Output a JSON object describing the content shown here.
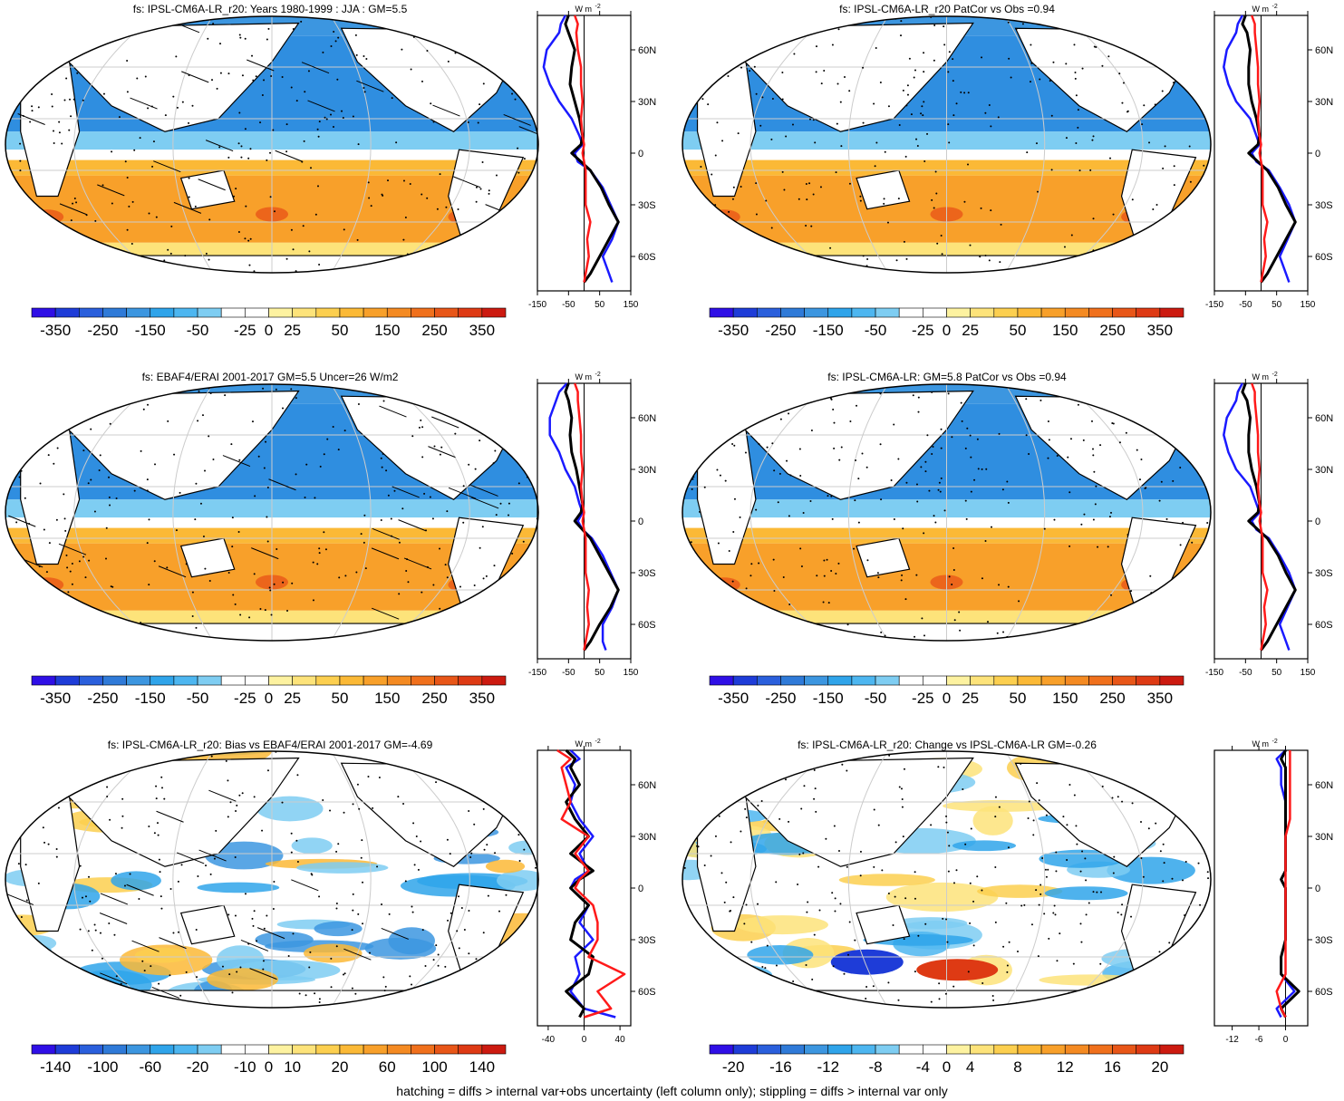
{
  "figure": {
    "footer": "hatching = diffs > internal var+obs uncertainty (left column only); stippling = diffs > internal var only",
    "unit_label": "W m",
    "unit_exp": "-2",
    "lat_ticks": [
      "60N",
      "30N",
      "0",
      "30S",
      "60S"
    ],
    "colors": {
      "land": "#ffffff",
      "coast": "#000000",
      "blue_line": "#1a1aff",
      "black_line": "#000000",
      "red_line": "#ff1a1a"
    }
  },
  "chart_data": [
    {
      "id": "p1",
      "type": "map+zonal_profile",
      "title": "fs: IPSL-CM6A-LR_r20: Years 1980-1999 : JJA : GM=5.5",
      "colorbar_labels": [
        "-350",
        "-250",
        "-150",
        "-50",
        "-25",
        "0",
        "25",
        "50",
        "150",
        "250",
        "350"
      ],
      "profile": {
        "xticks": [
          "-150",
          "-50",
          "50",
          "150"
        ],
        "xlim": [
          -150,
          150
        ],
        "lat": [
          80,
          75,
          70,
          60,
          50,
          40,
          30,
          20,
          10,
          5,
          0,
          -5,
          -10,
          -20,
          -30,
          -40,
          -50,
          -60,
          -70,
          -75
        ],
        "series": [
          {
            "name": "blue",
            "values": [
              -60,
              -75,
              -80,
              -120,
              -130,
              -110,
              -80,
              -40,
              -15,
              -5,
              -30,
              -20,
              20,
              60,
              85,
              110,
              90,
              60,
              80,
              90
            ]
          },
          {
            "name": "black",
            "values": [
              -50,
              -60,
              -50,
              -30,
              -40,
              -45,
              -30,
              -15,
              -5,
              -10,
              -40,
              -10,
              20,
              55,
              80,
              110,
              80,
              50,
              20,
              0
            ]
          },
          {
            "name": "red",
            "values": [
              -30,
              -20,
              -25,
              -20,
              -10,
              -10,
              -5,
              -10,
              -5,
              0,
              -5,
              0,
              5,
              5,
              5,
              20,
              10,
              15,
              5,
              0
            ]
          }
        ]
      }
    },
    {
      "id": "p2",
      "type": "map+zonal_profile",
      "title": "fs: IPSL-CM6A-LR_r20 PatCor vs Obs =0.94",
      "colorbar_labels": [
        "-350",
        "-250",
        "-150",
        "-50",
        "-25",
        "0",
        "25",
        "50",
        "150",
        "250",
        "350"
      ],
      "profile": {
        "xticks": [
          "-150",
          "-50",
          "50",
          "150"
        ],
        "xlim": [
          -150,
          150
        ],
        "lat": [
          80,
          75,
          70,
          60,
          50,
          40,
          30,
          20,
          10,
          5,
          0,
          -5,
          -10,
          -20,
          -30,
          -40,
          -50,
          -60,
          -70,
          -75
        ],
        "series": [
          {
            "name": "blue",
            "values": [
              -60,
              -75,
              -80,
              -110,
              -120,
              -105,
              -80,
              -35,
              -15,
              -5,
              -30,
              -15,
              25,
              60,
              90,
              110,
              85,
              60,
              80,
              90
            ]
          },
          {
            "name": "black",
            "values": [
              -50,
              -60,
              -45,
              -35,
              -40,
              -40,
              -30,
              -15,
              -5,
              -10,
              -40,
              -10,
              20,
              55,
              80,
              110,
              80,
              50,
              20,
              0
            ]
          },
          {
            "name": "red",
            "values": [
              -30,
              -20,
              -20,
              -15,
              -10,
              -10,
              -5,
              -10,
              -5,
              0,
              -5,
              0,
              5,
              5,
              5,
              20,
              10,
              15,
              5,
              0
            ]
          }
        ]
      }
    },
    {
      "id": "p3",
      "type": "map+zonal_profile",
      "title": "fs: EBAF4/ERAI 2001-2017 GM=5.5 Uncer=26 W/m2",
      "colorbar_labels": [
        "-350",
        "-250",
        "-150",
        "-50",
        "-25",
        "0",
        "25",
        "50",
        "150",
        "250",
        "350"
      ],
      "profile": {
        "xticks": [
          "-150",
          "-50",
          "50",
          "150"
        ],
        "xlim": [
          -150,
          150
        ],
        "lat": [
          80,
          75,
          70,
          60,
          50,
          40,
          30,
          20,
          10,
          5,
          0,
          -5,
          -10,
          -20,
          -30,
          -40,
          -50,
          -60,
          -70,
          -75
        ],
        "series": [
          {
            "name": "blue",
            "values": [
              -55,
              -80,
              -90,
              -110,
              -110,
              -80,
              -60,
              -30,
              -15,
              -5,
              -20,
              -5,
              25,
              60,
              85,
              110,
              90,
              60,
              60,
              70
            ]
          },
          {
            "name": "black",
            "values": [
              -50,
              -60,
              -50,
              -40,
              -45,
              -40,
              -25,
              -15,
              -5,
              -10,
              -30,
              -5,
              20,
              50,
              80,
              110,
              85,
              50,
              20,
              0
            ]
          },
          {
            "name": "red",
            "values": [
              -30,
              -20,
              -20,
              -15,
              -10,
              -10,
              -5,
              -10,
              -5,
              0,
              -5,
              0,
              5,
              5,
              5,
              15,
              10,
              15,
              5,
              0
            ]
          }
        ]
      }
    },
    {
      "id": "p4",
      "type": "map+zonal_profile",
      "title": "fs: IPSL-CM6A-LR: GM=5.8 PatCor vs Obs =0.94",
      "colorbar_labels": [
        "-350",
        "-250",
        "-150",
        "-50",
        "-25",
        "0",
        "25",
        "50",
        "150",
        "250",
        "350"
      ],
      "profile": {
        "xticks": [
          "-150",
          "-50",
          "50",
          "150"
        ],
        "xlim": [
          -150,
          150
        ],
        "lat": [
          80,
          75,
          70,
          60,
          50,
          40,
          30,
          20,
          10,
          5,
          0,
          -5,
          -10,
          -20,
          -30,
          -40,
          -50,
          -60,
          -70,
          -75
        ],
        "series": [
          {
            "name": "blue",
            "values": [
              -60,
              -75,
              -80,
              -110,
              -120,
              -105,
              -80,
              -35,
              -15,
              -5,
              -30,
              -15,
              25,
              60,
              90,
              110,
              85,
              60,
              80,
              90
            ]
          },
          {
            "name": "black",
            "values": [
              -50,
              -60,
              -45,
              -35,
              -40,
              -40,
              -30,
              -15,
              -5,
              -10,
              -40,
              -10,
              20,
              55,
              80,
              110,
              80,
              50,
              20,
              0
            ]
          },
          {
            "name": "red",
            "values": [
              -30,
              -20,
              -20,
              -15,
              -10,
              -10,
              -5,
              -10,
              -5,
              0,
              -5,
              0,
              5,
              5,
              5,
              20,
              10,
              15,
              5,
              0
            ]
          }
        ]
      }
    },
    {
      "id": "p5",
      "type": "map+zonal_profile",
      "title": "fs: IPSL-CM6A-LR_r20: Bias vs EBAF4/ERAI 2001-2017 GM=-4.69",
      "colorbar_labels": [
        "-140",
        "-100",
        "-60",
        "-20",
        "-10",
        "0",
        "10",
        "20",
        "60",
        "100",
        "140"
      ],
      "profile": {
        "xticks": [
          "-40",
          "0",
          "40"
        ],
        "xlim": [
          -52,
          52
        ],
        "lat": [
          80,
          75,
          70,
          60,
          50,
          40,
          30,
          20,
          10,
          5,
          0,
          -5,
          -10,
          -20,
          -30,
          -40,
          -50,
          -60,
          -70,
          -75
        ],
        "series": [
          {
            "name": "blue",
            "values": [
              -15,
              -5,
              -20,
              -10,
              -15,
              -5,
              10,
              -5,
              5,
              -10,
              -15,
              -5,
              5,
              -5,
              10,
              -10,
              -5,
              -15,
              0,
              35
            ]
          },
          {
            "name": "black",
            "values": [
              -20,
              -10,
              -15,
              -5,
              -20,
              -10,
              5,
              -15,
              10,
              -5,
              -15,
              -5,
              5,
              -10,
              -15,
              10,
              5,
              -20,
              0,
              -5
            ]
          },
          {
            "name": "red",
            "values": [
              -30,
              -15,
              -25,
              -20,
              -15,
              -25,
              5,
              -10,
              5,
              -5,
              -10,
              0,
              10,
              15,
              15,
              5,
              45,
              15,
              30,
              0
            ]
          }
        ]
      }
    },
    {
      "id": "p6",
      "type": "map+zonal_profile",
      "title": "fs: IPSL-CM6A-LR_r20: Change vs IPSL-CM6A-LR GM=-0.26",
      "colorbar_labels": [
        "-20",
        "-16",
        "-12",
        "-8",
        "-4",
        "0",
        "4",
        "8",
        "12",
        "16",
        "20"
      ],
      "profile": {
        "xticks": [
          "-12",
          "-6",
          "0"
        ],
        "xlim": [
          -16,
          5
        ],
        "lat": [
          80,
          75,
          70,
          60,
          50,
          40,
          30,
          20,
          10,
          5,
          0,
          -5,
          -10,
          -20,
          -30,
          -40,
          -50,
          -60,
          -70,
          -75
        ],
        "series": [
          {
            "name": "blue",
            "values": [
              0,
              -2,
              -1,
              -1,
              0,
              0,
              0,
              0,
              0,
              -1,
              0,
              0,
              0,
              0,
              0,
              -1,
              -1,
              2,
              -2,
              -1
            ]
          },
          {
            "name": "black",
            "values": [
              0,
              -1,
              0,
              0,
              0,
              0,
              0,
              0,
              0,
              -1,
              0,
              0,
              0,
              0,
              0,
              -1,
              -1,
              3,
              -1,
              0
            ]
          },
          {
            "name": "red",
            "values": [
              1,
              1,
              1,
              1,
              1,
              1,
              0,
              0,
              0,
              0,
              0,
              0,
              0,
              0,
              0,
              0,
              0,
              -2,
              -1,
              0
            ]
          }
        ]
      }
    }
  ]
}
